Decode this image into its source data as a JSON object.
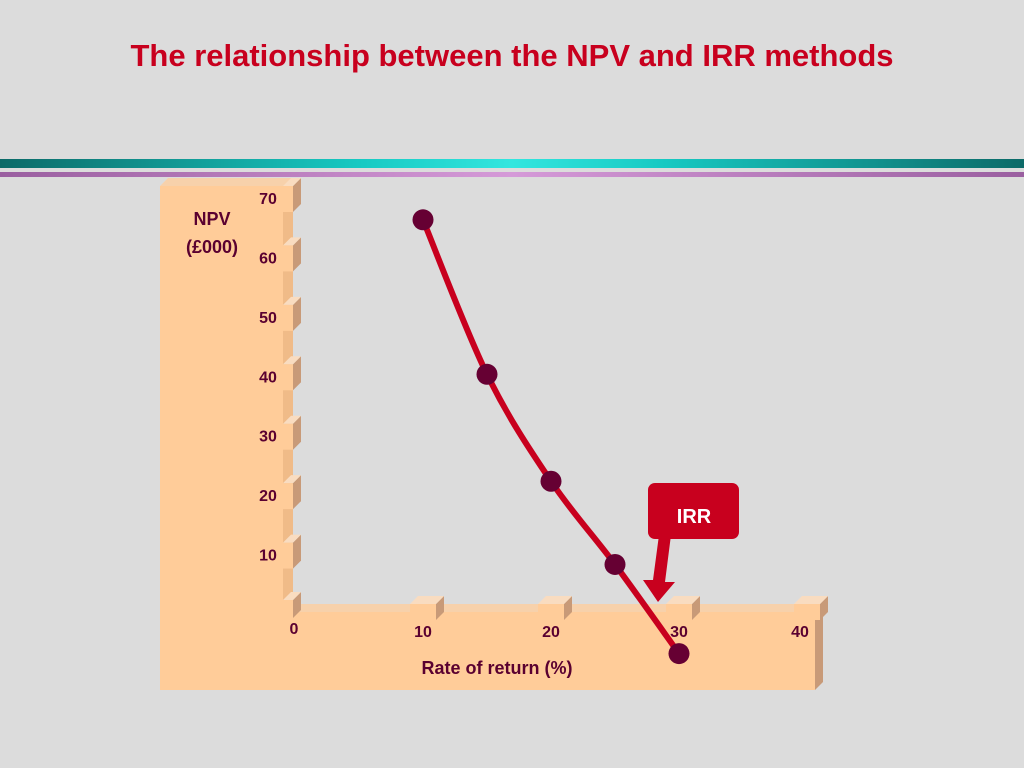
{
  "title": "The relationship between the NPV and IRR methods",
  "colors": {
    "title": "#c8001e",
    "background": "#dcdcdc",
    "panel": "#ffcc99",
    "curve": "#c8001e",
    "marker": "#660033",
    "callout": "#c8001e"
  },
  "chart_data": {
    "type": "line",
    "ylabel": "NPV (£000)",
    "ylabel_lines": [
      "NPV",
      "(£000)"
    ],
    "xlabel": "Rate of return (%)",
    "x_ticks": [
      0,
      10,
      20,
      30,
      40
    ],
    "y_ticks": [
      10,
      20,
      30,
      40,
      50,
      60,
      70
    ],
    "xlim": [
      0,
      40
    ],
    "ylim": [
      0,
      70
    ],
    "grid": false,
    "series": [
      {
        "x": [
          10,
          15,
          20,
          25,
          30
        ],
        "y": [
          66,
          40,
          22,
          8,
          -7
        ],
        "markers": true
      }
    ],
    "annotations": [
      {
        "text": "IRR",
        "points_to_x": 28.5,
        "points_to_y": 0
      }
    ]
  }
}
